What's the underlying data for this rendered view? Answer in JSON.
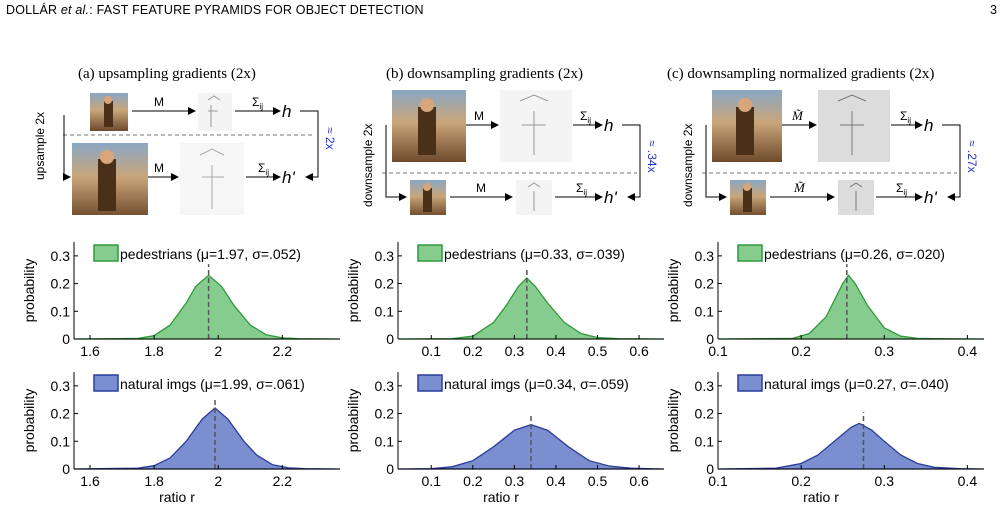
{
  "header": {
    "author": "DOLLÁR",
    "etal": "et al.",
    "title": ": FAST FEATURE PYRAMIDS FOR OBJECT DETECTION",
    "page": "3"
  },
  "columns": [
    {
      "title": "(a) upsampling gradients (2x)",
      "side_label": "upsample 2x",
      "approx": "≈ 2x",
      "op": "M",
      "sum": "Σ",
      "sub": "ij",
      "h": "h",
      "hprime": "h'"
    },
    {
      "title": "(b) downsampling gradients (2x)",
      "side_label": "downsample 2x",
      "approx": "≈ .34x",
      "op": "M",
      "sum": "Σ",
      "sub": "ij",
      "h": "h",
      "hprime": "h'"
    },
    {
      "title": "(c) downsampling normalized gradients (2x)",
      "side_label": "downsample 2x",
      "approx": "≈ .27x",
      "op": "M̃",
      "sum": "Σ",
      "sub": "ij",
      "h": "h",
      "hprime": "h'"
    }
  ],
  "colors": {
    "green_fill": "#86cc8e",
    "green_line": "#2e9a3a",
    "blue_fill": "#7b8fd0",
    "blue_line": "#2a3d9a",
    "approx_text": "#2233cc"
  },
  "chart_data": [
    {
      "type": "area",
      "panel": "a-top",
      "legend": "pedestrians (μ=1.97, σ=.052)",
      "color": "green",
      "xlim": [
        1.55,
        2.38
      ],
      "ylim": [
        0,
        0.35
      ],
      "xticks": [
        "1.6",
        "1.8",
        "2",
        "2.2"
      ],
      "xtick_vals": [
        1.6,
        1.8,
        2.0,
        2.2
      ],
      "yticks": [
        "0",
        "0.1",
        "0.2",
        "0.3"
      ],
      "ytick_vals": [
        0,
        0.1,
        0.2,
        0.3
      ],
      "ylabel": "probability",
      "xlabel": "",
      "mean": 1.97,
      "mean_line_x": 1.97,
      "peak": 0.23,
      "x": [
        1.55,
        1.75,
        1.8,
        1.85,
        1.9,
        1.93,
        1.97,
        2.01,
        2.05,
        2.1,
        2.15,
        2.2,
        2.25,
        2.38
      ],
      "y": [
        0,
        0.002,
        0.012,
        0.05,
        0.13,
        0.19,
        0.23,
        0.19,
        0.12,
        0.05,
        0.015,
        0.004,
        0.001,
        0
      ]
    },
    {
      "type": "area",
      "panel": "b-top",
      "legend": "pedestrians (μ=0.33, σ=.039)",
      "color": "green",
      "xlim": [
        0.02,
        0.66
      ],
      "ylim": [
        0,
        0.35
      ],
      "xticks": [
        "0.1",
        "0.2",
        "0.3",
        "0.4",
        "0.5",
        "0.6"
      ],
      "xtick_vals": [
        0.1,
        0.2,
        0.3,
        0.4,
        0.5,
        0.6
      ],
      "yticks": [
        "0",
        "0.1",
        "0.2",
        "0.3"
      ],
      "ytick_vals": [
        0,
        0.1,
        0.2,
        0.3
      ],
      "ylabel": "probability",
      "xlabel": "",
      "mean": 0.33,
      "mean_line_x": 0.33,
      "peak": 0.22,
      "x": [
        0.02,
        0.15,
        0.2,
        0.25,
        0.28,
        0.31,
        0.33,
        0.35,
        0.38,
        0.42,
        0.46,
        0.5,
        0.55,
        0.66
      ],
      "y": [
        0,
        0.001,
        0.01,
        0.06,
        0.12,
        0.19,
        0.22,
        0.19,
        0.13,
        0.06,
        0.02,
        0.005,
        0.001,
        0
      ]
    },
    {
      "type": "area",
      "panel": "c-top",
      "legend": "pedestrians (μ=0.26, σ=.020)",
      "color": "green",
      "xlim": [
        0.1,
        0.42
      ],
      "ylim": [
        0,
        0.35
      ],
      "xticks": [
        "0.1",
        "0.2",
        "0.3",
        "0.4"
      ],
      "xtick_vals": [
        0.1,
        0.2,
        0.3,
        0.4
      ],
      "yticks": [
        "0",
        "0.1",
        "0.2",
        "0.3"
      ],
      "ytick_vals": [
        0,
        0.1,
        0.2,
        0.3
      ],
      "ylabel": "probability",
      "xlabel": "",
      "mean": 0.26,
      "mean_line_x": 0.255,
      "peak": 0.23,
      "x": [
        0.1,
        0.19,
        0.21,
        0.23,
        0.24,
        0.25,
        0.257,
        0.265,
        0.28,
        0.3,
        0.32,
        0.34,
        0.36,
        0.42
      ],
      "y": [
        0,
        0.002,
        0.02,
        0.08,
        0.14,
        0.2,
        0.23,
        0.2,
        0.12,
        0.04,
        0.01,
        0.002,
        0.001,
        0
      ]
    },
    {
      "type": "area",
      "panel": "a-bottom",
      "legend": "natural imgs (μ=1.99, σ=.061)",
      "color": "blue",
      "xlim": [
        1.55,
        2.38
      ],
      "ylim": [
        0,
        0.35
      ],
      "xticks": [
        "1.6",
        "1.8",
        "2",
        "2.2"
      ],
      "xtick_vals": [
        1.6,
        1.8,
        2.0,
        2.2
      ],
      "yticks": [
        "0",
        "0.1",
        "0.2",
        "0.3"
      ],
      "ytick_vals": [
        0,
        0.1,
        0.2,
        0.3
      ],
      "ylabel": "probability",
      "xlabel": "ratio r",
      "mean": 1.99,
      "mean_line_x": 1.99,
      "peak": 0.22,
      "x": [
        1.55,
        1.75,
        1.8,
        1.85,
        1.9,
        1.95,
        1.99,
        2.03,
        2.08,
        2.12,
        2.17,
        2.22,
        2.27,
        2.38
      ],
      "y": [
        0,
        0.003,
        0.012,
        0.04,
        0.1,
        0.18,
        0.22,
        0.18,
        0.1,
        0.05,
        0.015,
        0.004,
        0.001,
        0
      ]
    },
    {
      "type": "area",
      "panel": "b-bottom",
      "legend": "natural imgs (μ=0.34, σ=.059)",
      "color": "blue",
      "xlim": [
        0.02,
        0.66
      ],
      "ylim": [
        0,
        0.35
      ],
      "xticks": [
        "0.1",
        "0.2",
        "0.3",
        "0.4",
        "0.5",
        "0.6"
      ],
      "xtick_vals": [
        0.1,
        0.2,
        0.3,
        0.4,
        0.5,
        0.6
      ],
      "yticks": [
        "0",
        "0.1",
        "0.2",
        "0.3"
      ],
      "ytick_vals": [
        0,
        0.1,
        0.2,
        0.3
      ],
      "ylabel": "probability",
      "xlabel": "ratio r",
      "mean": 0.34,
      "mean_line_x": 0.34,
      "peak": 0.16,
      "x": [
        0.02,
        0.1,
        0.15,
        0.2,
        0.25,
        0.3,
        0.34,
        0.38,
        0.43,
        0.48,
        0.53,
        0.58,
        0.62,
        0.66
      ],
      "y": [
        0,
        0.001,
        0.008,
        0.03,
        0.08,
        0.14,
        0.16,
        0.14,
        0.08,
        0.03,
        0.01,
        0.003,
        0.001,
        0
      ]
    },
    {
      "type": "area",
      "panel": "c-bottom",
      "legend": "natural imgs (μ=0.27, σ=.040)",
      "color": "blue",
      "xlim": [
        0.1,
        0.42
      ],
      "ylim": [
        0,
        0.35
      ],
      "xticks": [
        "0.1",
        "0.2",
        "0.3",
        "0.4"
      ],
      "xtick_vals": [
        0.1,
        0.2,
        0.3,
        0.4
      ],
      "yticks": [
        "0",
        "0.1",
        "0.2",
        "0.3"
      ],
      "ytick_vals": [
        0,
        0.1,
        0.2,
        0.3
      ],
      "ylabel": "probability",
      "xlabel": "ratio r",
      "mean": 0.27,
      "mean_line_x": 0.275,
      "peak": 0.165,
      "x": [
        0.1,
        0.17,
        0.2,
        0.22,
        0.24,
        0.26,
        0.27,
        0.285,
        0.3,
        0.32,
        0.34,
        0.36,
        0.39,
        0.42
      ],
      "y": [
        0,
        0.003,
        0.02,
        0.05,
        0.1,
        0.15,
        0.165,
        0.14,
        0.1,
        0.05,
        0.02,
        0.006,
        0.001,
        0
      ]
    }
  ]
}
